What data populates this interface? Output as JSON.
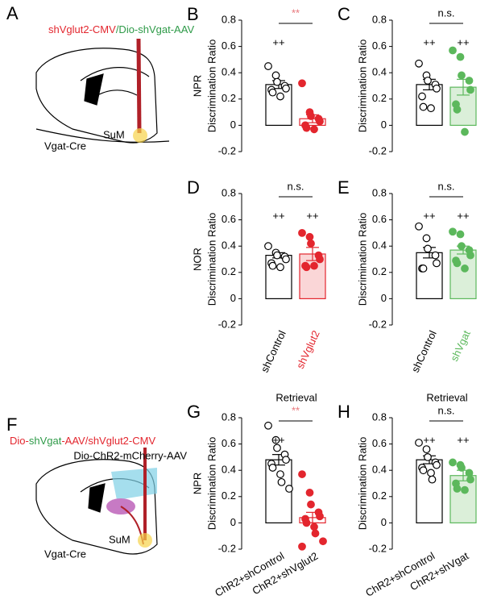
{
  "schematics": [
    {
      "panel": "A",
      "parts": [
        {
          "text": "shVglut2-CMV",
          "color": "#e3262e"
        },
        {
          "text": "/Dio-shVgat-AAV",
          "color": "#2e9a48"
        }
      ],
      "region": "SuM",
      "mouse": "Vgat-Cre"
    },
    {
      "panel": "F",
      "parts": [
        {
          "text": "Dio-",
          "color": "#e3262e"
        },
        {
          "text": "shVgat",
          "color": "#2e9a48"
        },
        {
          "text": "-AAV/shVglut2-CMV",
          "color": "#e3262e"
        }
      ],
      "line2": "Dio-ChR2-mCherry-AAV",
      "region": "SuM",
      "mouse": "Vgat-Cre"
    }
  ],
  "chart_data": [
    {
      "type": "bar",
      "panel": "B",
      "row_label": "NPR",
      "ylabel": "Discrimination Ratio",
      "significance": "**",
      "significance_color": "#e8787c",
      "categories": [
        null,
        null
      ],
      "values": [
        0.31,
        0.05
      ],
      "errors": [
        0.03,
        0.03
      ],
      "bar_labels": [
        "++",
        null
      ],
      "edge_colors": [
        "#000000",
        "#e3262e"
      ],
      "fill_colors": [
        "#ffffff",
        "#ffffff"
      ],
      "point_colors": [
        "#000000",
        "#e3262e"
      ],
      "point_filled": [
        false,
        true
      ],
      "points": [
        [
          0.45,
          0.38,
          0.33,
          0.3,
          0.28,
          0.27,
          0.25,
          0.22
        ],
        [
          0.32,
          0.1,
          0.07,
          0.05,
          0.03,
          0.0,
          -0.02,
          -0.03
        ]
      ],
      "ylim": [
        -0.2,
        0.8
      ],
      "yticks": [
        -0.2,
        0,
        0.2,
        0.4,
        0.6,
        0.8
      ]
    },
    {
      "type": "bar",
      "panel": "C",
      "ylabel": "Discrimination Ratio",
      "significance": "n.s.",
      "significance_color": "#000000",
      "categories": [
        null,
        null
      ],
      "values": [
        0.31,
        0.29
      ],
      "errors": [
        0.04,
        0.06
      ],
      "bar_labels": [
        "++",
        "++"
      ],
      "edge_colors": [
        "#000000",
        "#5cb85c"
      ],
      "fill_colors": [
        "#ffffff",
        "#dbefd9"
      ],
      "point_colors": [
        "#000000",
        "#5cb85c"
      ],
      "point_filled": [
        false,
        true
      ],
      "points": [
        [
          0.47,
          0.38,
          0.34,
          0.31,
          0.28,
          0.22,
          0.14,
          0.13
        ],
        [
          0.57,
          0.52,
          0.38,
          0.34,
          0.27,
          0.16,
          0.12,
          -0.05
        ]
      ],
      "ylim": [
        -0.2,
        0.8
      ],
      "yticks": [
        -0.2,
        0,
        0.2,
        0.4,
        0.6,
        0.8
      ]
    },
    {
      "type": "bar",
      "panel": "D",
      "row_label": "NOR",
      "ylabel": "Discrimination Ratio",
      "significance": "n.s.",
      "significance_color": "#000000",
      "categories": [
        "shControl",
        "shVglut2"
      ],
      "category_colors": [
        "#000000",
        "#e3262e"
      ],
      "values": [
        0.33,
        0.34
      ],
      "errors": [
        0.02,
        0.05
      ],
      "bar_labels": [
        "++",
        "++"
      ],
      "edge_colors": [
        "#000000",
        "#e3262e"
      ],
      "fill_colors": [
        "#ffffff",
        "#fad6d7"
      ],
      "point_colors": [
        "#000000",
        "#e3262e"
      ],
      "point_filled": [
        false,
        true
      ],
      "points": [
        [
          0.4,
          0.35,
          0.33,
          0.32,
          0.3,
          0.27,
          0.25,
          0.24
        ],
        [
          0.5,
          0.47,
          0.42,
          0.33,
          0.3,
          0.25,
          0.24,
          0.25
        ]
      ],
      "ylim": [
        -0.2,
        0.8
      ],
      "yticks": [
        -0.2,
        0,
        0.2,
        0.4,
        0.6,
        0.8
      ]
    },
    {
      "type": "bar",
      "panel": "E",
      "ylabel": "Discrimination Ratio",
      "significance": "n.s.",
      "significance_color": "#000000",
      "categories": [
        "shControl",
        "shVgat"
      ],
      "category_colors": [
        "#000000",
        "#5cb85c"
      ],
      "values": [
        0.35,
        0.37
      ],
      "errors": [
        0.04,
        0.03
      ],
      "bar_labels": [
        "++",
        "++"
      ],
      "edge_colors": [
        "#000000",
        "#5cb85c"
      ],
      "fill_colors": [
        "#ffffff",
        "#dbefd9"
      ],
      "point_colors": [
        "#000000",
        "#5cb85c"
      ],
      "point_filled": [
        false,
        true
      ],
      "points": [
        [
          0.55,
          0.46,
          0.38,
          0.33,
          0.27,
          0.23,
          0.23
        ],
        [
          0.51,
          0.49,
          0.4,
          0.37,
          0.33,
          0.29,
          0.27,
          0.23
        ]
      ],
      "ylim": [
        -0.2,
        0.8
      ],
      "yticks": [
        -0.2,
        0,
        0.2,
        0.4,
        0.6,
        0.8
      ]
    },
    {
      "type": "bar",
      "panel": "G",
      "title": "Retrieval",
      "row_label": "NPR",
      "ylabel": "Discrimination Ratio",
      "significance": "**",
      "significance_color": "#e8787c",
      "categories": [
        "ChR2+shControl",
        "ChR2+shVglut2"
      ],
      "category_colors": [
        "#000000",
        "#000000"
      ],
      "values": [
        0.48,
        0.04
      ],
      "errors": [
        0.04,
        0.04
      ],
      "bar_labels": [
        "++",
        null
      ],
      "edge_colors": [
        "#000000",
        "#e3262e"
      ],
      "fill_colors": [
        "#ffffff",
        "#ffffff"
      ],
      "point_colors": [
        "#000000",
        "#e3262e"
      ],
      "point_filled": [
        false,
        true
      ],
      "points": [
        [
          0.74,
          0.63,
          0.57,
          0.52,
          0.48,
          0.45,
          0.42,
          0.37,
          0.31,
          0.26
        ],
        [
          0.37,
          0.23,
          0.14,
          0.08,
          0.05,
          0.03,
          0.0,
          -0.03,
          -0.08,
          -0.14,
          -0.18
        ]
      ],
      "ylim": [
        -0.2,
        0.8
      ],
      "yticks": [
        -0.2,
        0,
        0.2,
        0.4,
        0.6,
        0.8
      ]
    },
    {
      "type": "bar",
      "panel": "H",
      "title": "Retrieval",
      "ylabel": "Discrimination Ratio",
      "significance": "n.s.",
      "significance_color": "#000000",
      "categories": [
        "ChR2+shControl",
        "ChR2+shVgat"
      ],
      "category_colors": [
        "#000000",
        "#000000"
      ],
      "values": [
        0.48,
        0.36
      ],
      "errors": [
        0.03,
        0.04
      ],
      "bar_labels": [
        "++",
        "++"
      ],
      "edge_colors": [
        "#000000",
        "#5cb85c"
      ],
      "fill_colors": [
        "#ffffff",
        "#dbefd9"
      ],
      "point_colors": [
        "#000000",
        "#5cb85c"
      ],
      "point_filled": [
        false,
        true
      ],
      "points": [
        [
          0.61,
          0.56,
          0.5,
          0.46,
          0.44,
          0.42,
          0.4,
          0.38,
          0.33
        ],
        [
          0.46,
          0.44,
          0.42,
          0.38,
          0.33,
          0.3,
          0.26,
          0.25
        ]
      ],
      "ylim": [
        -0.2,
        0.8
      ],
      "yticks": [
        -0.2,
        0,
        0.2,
        0.4,
        0.6,
        0.8
      ]
    }
  ]
}
